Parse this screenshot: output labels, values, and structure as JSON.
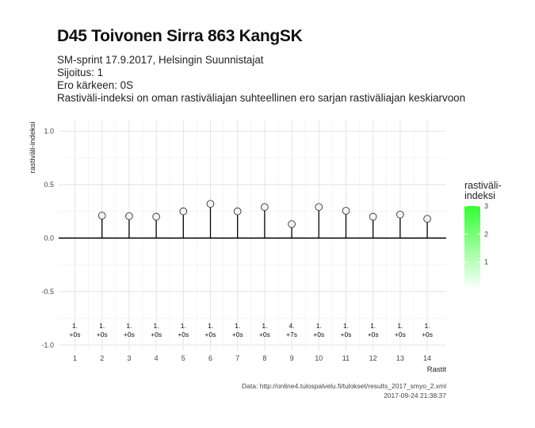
{
  "title": "D45 Toivonen Sirra 863 KangSK",
  "subtitle": [
    "SM-sprint 17.9.2017, Helsingin Suunnistajat",
    "Sijoitus: 1",
    "Ero kärkeen: 0S",
    "Rastiväli-indeksi on oman rastiväliajan suhteellinen ero sarjan rastiväliajan keskiarvoon"
  ],
  "caption": {
    "source": "Data: http://online4.tulospalvelu.fi/tulokset/results_2017_smyo_2.xml",
    "timestamp": "2017-09-24 21:38:37"
  },
  "legend": {
    "title": "rastiväli-\nindeksi",
    "ticks": [
      "1",
      "2",
      "3"
    ],
    "low_color": "#ffffff",
    "high_color": "#33ff33"
  },
  "chart_data": {
    "type": "lollipop",
    "xlabel": "Rastit",
    "ylabel": "rastiväli-indeksi",
    "ylim": [
      -1.05,
      1.1
    ],
    "xlim": [
      0.4,
      14.7
    ],
    "y_ticks": [
      "1.0",
      "0.5",
      "0.0",
      "-0.5",
      "-1.0"
    ],
    "x_ticks": [
      1,
      2,
      3,
      4,
      5,
      6,
      7,
      8,
      9,
      10,
      11,
      12,
      13,
      14
    ],
    "grid": true,
    "baseline": 0,
    "points": [
      {
        "x": 2,
        "y": 0.21
      },
      {
        "x": 3,
        "y": 0.205
      },
      {
        "x": 4,
        "y": 0.2
      },
      {
        "x": 5,
        "y": 0.25
      },
      {
        "x": 6,
        "y": 0.32
      },
      {
        "x": 7,
        "y": 0.25
      },
      {
        "x": 8,
        "y": 0.29
      },
      {
        "x": 9,
        "y": 0.13
      },
      {
        "x": 10,
        "y": 0.29
      },
      {
        "x": 11,
        "y": 0.255
      },
      {
        "x": 12,
        "y": 0.2
      },
      {
        "x": 13,
        "y": 0.22
      },
      {
        "x": 14,
        "y": 0.18
      }
    ],
    "annotations": [
      {
        "x": 1,
        "rank": "1.",
        "diff": "+0s"
      },
      {
        "x": 2,
        "rank": "1.",
        "diff": "+0s"
      },
      {
        "x": 3,
        "rank": "1.",
        "diff": "+0s"
      },
      {
        "x": 4,
        "rank": "1.",
        "diff": "+0s"
      },
      {
        "x": 5,
        "rank": "1.",
        "diff": "+0s"
      },
      {
        "x": 6,
        "rank": "1.",
        "diff": "+0s"
      },
      {
        "x": 7,
        "rank": "1.",
        "diff": "+0s"
      },
      {
        "x": 8,
        "rank": "1.",
        "diff": "+0s"
      },
      {
        "x": 9,
        "rank": "4.",
        "diff": "+7s"
      },
      {
        "x": 10,
        "rank": "1.",
        "diff": "+0s"
      },
      {
        "x": 11,
        "rank": "1.",
        "diff": "+0s"
      },
      {
        "x": 12,
        "rank": "1.",
        "diff": "+0s"
      },
      {
        "x": 13,
        "rank": "1.",
        "diff": "+0s"
      },
      {
        "x": 14,
        "rank": "1.",
        "diff": "+0s"
      }
    ]
  }
}
